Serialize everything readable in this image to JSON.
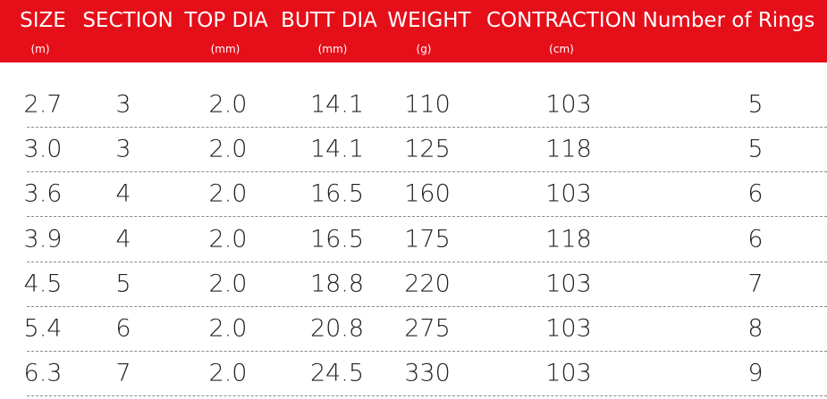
{
  "table": {
    "headers": [
      {
        "label": "SIZE",
        "unit": "(m)"
      },
      {
        "label": "SECTION"
      },
      {
        "label": "TOP DIA",
        "unit": "(mm)"
      },
      {
        "label": "BUTT DIA",
        "unit": "(mm)"
      },
      {
        "label": "WEIGHT",
        "unit": "(g)"
      },
      {
        "label": "CONTRACTION",
        "unit": "(cm)"
      },
      {
        "label": "Number of Rings"
      }
    ],
    "rows": [
      [
        "2.7",
        "3",
        "2.0",
        "14.1",
        "110",
        "103",
        "5"
      ],
      [
        "3.0",
        "3",
        "2.0",
        "14.1",
        "125",
        "118",
        "5"
      ],
      [
        "3.6",
        "4",
        "2.0",
        "16.5",
        "160",
        "103",
        "6"
      ],
      [
        "3.9",
        "4",
        "2.0",
        "16.5",
        "175",
        "118",
        "6"
      ],
      [
        "4.5",
        "5",
        "2.0",
        "18.8",
        "220",
        "103",
        "7"
      ],
      [
        "5.4",
        "6",
        "2.0",
        "20.8",
        "275",
        "103",
        "8"
      ],
      [
        "6.3",
        "7",
        "2.0",
        "24.5",
        "330",
        "103",
        "9"
      ]
    ]
  }
}
